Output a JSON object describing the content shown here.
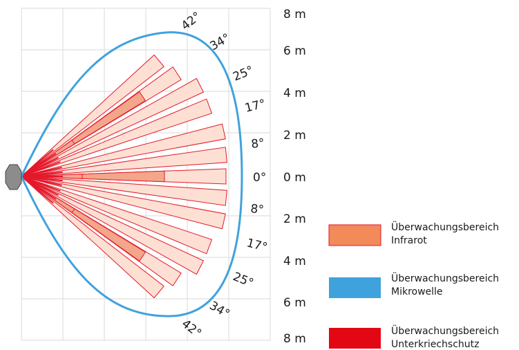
{
  "diagram": {
    "distance_labels": [
      "8 m",
      "6 m",
      "4 m",
      "2 m",
      "0 m",
      "2 m",
      "4 m",
      "6 m",
      "8 m"
    ],
    "angle_labels_upper": [
      "42°",
      "34°",
      "25°",
      "17°",
      "8°"
    ],
    "angle_label_center": "0°",
    "angle_labels_lower": [
      "8°",
      "17°",
      "25°",
      "34°",
      "42°"
    ]
  },
  "legend": [
    {
      "line1": "Überwachungsbereich",
      "line2": "Infrarot",
      "color": "#f28a5a"
    },
    {
      "line1": "Überwachungsbereich",
      "line2": "Mikrowelle",
      "color": "#3fa2dd"
    },
    {
      "line1": "Überwachungsbereich",
      "line2": "Unterkriechschutz",
      "color": "#e30613"
    }
  ],
  "colors": {
    "beam_fill": "#fde0d3",
    "beam_stroke": "#e3182a",
    "infrared_fill": "#f4a68a",
    "microwave": "#3fa2dd",
    "sensor": "#8c8c8c",
    "grid": "#d9d9d9"
  }
}
